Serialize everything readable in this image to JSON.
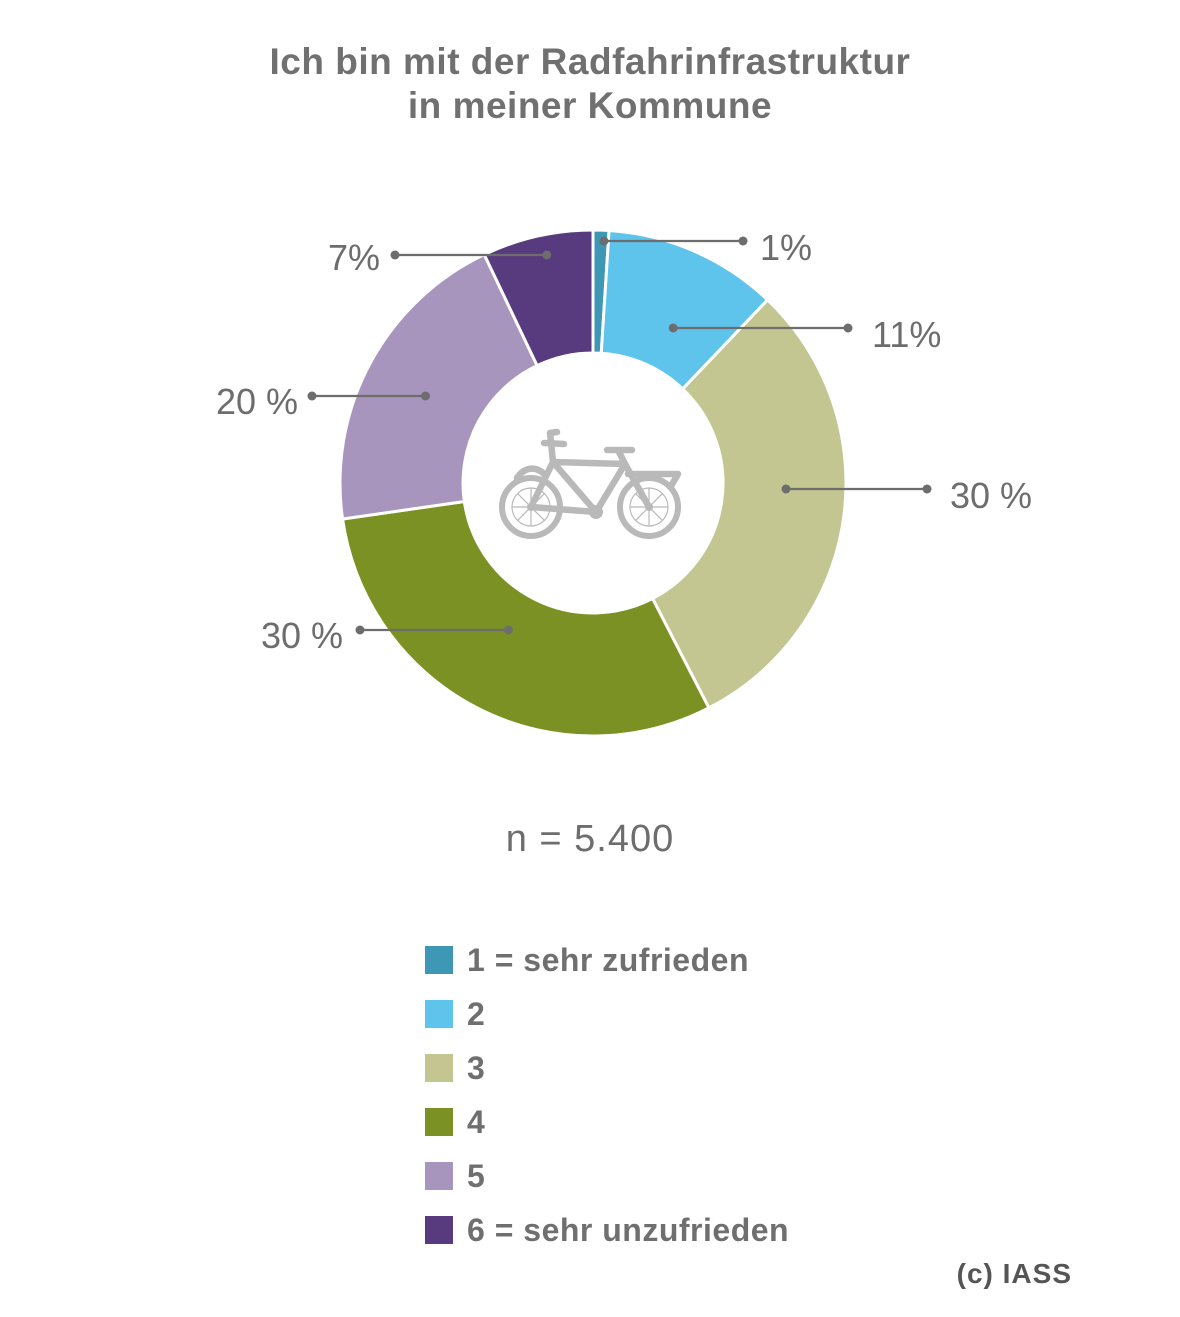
{
  "title_lines": [
    "Ich bin mit der Radfahrinfrastruktur",
    "in meiner Kommune"
  ],
  "note": "n = 5.400",
  "credit": "(c) IASS",
  "center_icon": "bicycle-icon",
  "chart_data": {
    "type": "pie",
    "style": "donut",
    "categories": [
      "1 = sehr zufrieden",
      "2",
      "3",
      "4",
      "5",
      "6 = sehr unzufrieden"
    ],
    "values": [
      1,
      11,
      30,
      30,
      20,
      7
    ],
    "labels": [
      "1%",
      "11%",
      "30 %",
      "30 %",
      "20 %",
      "7%"
    ],
    "colors": [
      "#3e97b4",
      "#5ec4ec",
      "#c3c691",
      "#7b9123",
      "#a795bd",
      "#573b7e"
    ],
    "legend": "bottom"
  }
}
